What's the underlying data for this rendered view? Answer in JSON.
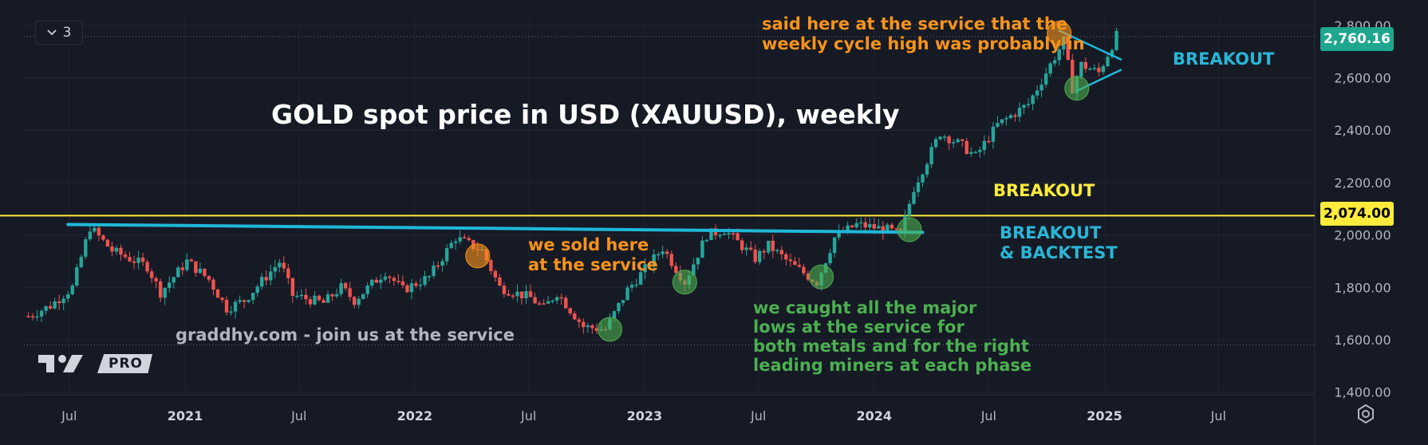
{
  "toolbar": {
    "interval_count": "3"
  },
  "colors": {
    "background": "#161a25",
    "up": "#26a69a",
    "down": "#ef5350",
    "yellow_line": "#ffeb3b",
    "trend_line": "#1fb8d8",
    "orange": "#f7931a",
    "green": "#4caf50",
    "cyan_text": "#29b6d6",
    "axis_text": "#b2b5be"
  },
  "logo": {
    "badge": "PRO"
  },
  "annotations": {
    "title": "GOLD spot price in USD (XAUUSD), weekly",
    "top_note_1": "said here at the service that the",
    "top_note_2": "weekly cycle high was probably in",
    "breakout_right": "BREAKOUT",
    "breakout_middle": "BREAKOUT",
    "backtest_1": "BREAKOUT",
    "backtest_2": "& BACKTEST",
    "sold_1": "we sold here",
    "sold_2": "at the service",
    "lows_1": "we caught all the major",
    "lows_2": "lows at the service for",
    "lows_3": "both metals and for the right",
    "lows_4": "leading miners at each phase",
    "website": "graddhy.com - join us at the service"
  },
  "price_tags": {
    "last": "2,760.16",
    "level": "2,074.00"
  },
  "chart_data": {
    "type": "candlestick",
    "title": "GOLD spot price in USD (XAUUSD), weekly",
    "y_axis": {
      "ticks": [
        1400,
        1600,
        1800,
        2000,
        2200,
        2400,
        2600,
        2800
      ],
      "tick_labels": [
        "1,400.00",
        "1,600.00",
        "1,800.00",
        "2,000.00",
        "2,200.00",
        "2,400.00",
        "2,600.00",
        "2,800.00"
      ],
      "range": [
        1390,
        2830
      ]
    },
    "x_axis": {
      "range": [
        "2020-04-20",
        "2025-12-01"
      ],
      "ticks": [
        {
          "date": "2020-07-01",
          "label": "Jul"
        },
        {
          "date": "2021-01-01",
          "label": "2021"
        },
        {
          "date": "2021-07-01",
          "label": "Jul"
        },
        {
          "date": "2022-01-01",
          "label": "2022"
        },
        {
          "date": "2022-07-01",
          "label": "Jul"
        },
        {
          "date": "2023-01-01",
          "label": "2023"
        },
        {
          "date": "2023-07-01",
          "label": "Jul"
        },
        {
          "date": "2024-01-01",
          "label": "2024"
        },
        {
          "date": "2024-07-01",
          "label": "Jul"
        },
        {
          "date": "2025-01-01",
          "label": "2025"
        },
        {
          "date": "2025-07-01",
          "label": "Jul"
        }
      ]
    },
    "series_anchors": [
      [
        "2020-04-27",
        1690
      ],
      [
        "2020-06-01",
        1730
      ],
      [
        "2020-07-06",
        1800
      ],
      [
        "2020-08-03",
        2030
      ],
      [
        "2020-09-07",
        1940
      ],
      [
        "2020-11-02",
        1880
      ],
      [
        "2020-11-23",
        1780
      ],
      [
        "2021-01-04",
        1900
      ],
      [
        "2021-02-08",
        1830
      ],
      [
        "2021-03-08",
        1720
      ],
      [
        "2021-04-05",
        1750
      ],
      [
        "2021-06-01",
        1900
      ],
      [
        "2021-06-21",
        1770
      ],
      [
        "2021-08-09",
        1740
      ],
      [
        "2021-09-06",
        1800
      ],
      [
        "2021-09-27",
        1750
      ],
      [
        "2021-11-15",
        1860
      ],
      [
        "2021-12-13",
        1790
      ],
      [
        "2022-01-24",
        1840
      ],
      [
        "2022-03-07",
        1990
      ],
      [
        "2022-04-18",
        1940
      ],
      [
        "2022-05-16",
        1800
      ],
      [
        "2022-07-04",
        1760
      ],
      [
        "2022-07-25",
        1720
      ],
      [
        "2022-08-15",
        1780
      ],
      [
        "2022-09-26",
        1650
      ],
      [
        "2022-10-31",
        1640
      ],
      [
        "2022-12-05",
        1790
      ],
      [
        "2023-01-30",
        1950
      ],
      [
        "2023-03-06",
        1820
      ],
      [
        "2023-04-10",
        2000
      ],
      [
        "2023-05-08",
        2020
      ],
      [
        "2023-06-26",
        1910
      ],
      [
        "2023-07-17",
        1960
      ],
      [
        "2023-08-21",
        1890
      ],
      [
        "2023-10-02",
        1820
      ],
      [
        "2023-10-30",
        1990
      ],
      [
        "2023-12-04",
        2040
      ],
      [
        "2024-01-22",
        2020
      ],
      [
        "2024-02-12",
        2000
      ],
      [
        "2024-03-04",
        2180
      ],
      [
        "2024-04-15",
        2390
      ],
      [
        "2024-05-20",
        2340
      ],
      [
        "2024-06-10",
        2300
      ],
      [
        "2024-07-15",
        2420
      ],
      [
        "2024-09-02",
        2500
      ],
      [
        "2024-10-28",
        2740
      ],
      [
        "2024-11-11",
        2560
      ],
      [
        "2024-11-25",
        2650
      ],
      [
        "2024-12-23",
        2620
      ],
      [
        "2025-01-20",
        2760
      ]
    ],
    "last_price": 2760.16,
    "horizontal_line": 2074,
    "lines": [
      {
        "name": "trend",
        "from": [
          "2020-06-29",
          2040
        ],
        "to": [
          "2024-03-18",
          2010
        ]
      },
      {
        "name": "wedge-upper",
        "from": [
          "2024-10-21",
          2780
        ],
        "to": [
          "2025-01-27",
          2670
        ]
      },
      {
        "name": "wedge-lower",
        "from": [
          "2024-11-18",
          2550
        ],
        "to": [
          "2025-01-27",
          2630
        ]
      }
    ],
    "markers": [
      {
        "date": "2022-04-11",
        "value": 1920,
        "color": "orange"
      },
      {
        "date": "2022-11-07",
        "value": 1640,
        "color": "green"
      },
      {
        "date": "2023-03-06",
        "value": 1820,
        "color": "green"
      },
      {
        "date": "2023-10-09",
        "value": 1840,
        "color": "green"
      },
      {
        "date": "2024-02-26",
        "value": 2020,
        "color": "green"
      },
      {
        "date": "2024-10-21",
        "value": 2770,
        "color": "orange"
      },
      {
        "date": "2024-11-18",
        "value": 2560,
        "color": "green"
      }
    ]
  }
}
